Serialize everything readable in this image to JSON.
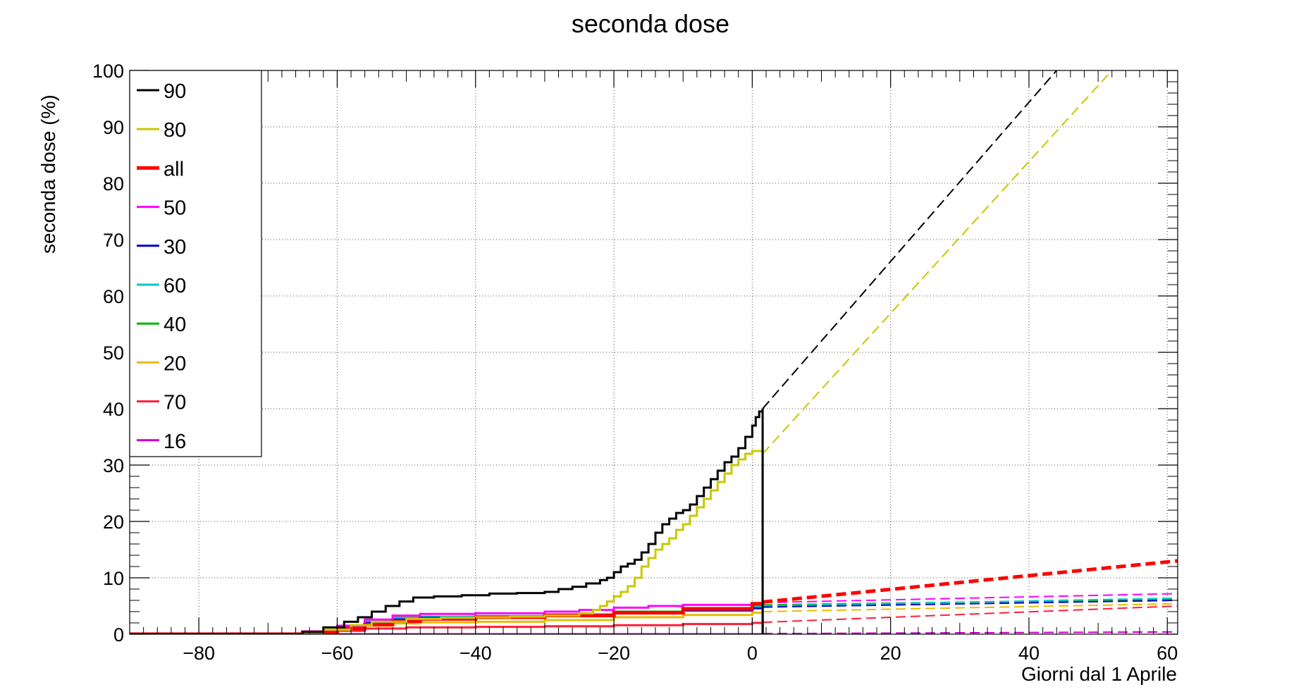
{
  "chart_data": {
    "type": "line",
    "title": "seconda dose",
    "xlabel": "Giorni dal 1 Aprile",
    "ylabel": "seconda dose (%)",
    "xlim": [
      -90,
      61.5
    ],
    "ylim": [
      0,
      100
    ],
    "x_ticks": [
      -80,
      -60,
      -40,
      -20,
      0,
      20,
      40,
      60
    ],
    "y_ticks": [
      0,
      10,
      20,
      30,
      40,
      50,
      60,
      70,
      80,
      90,
      100
    ],
    "grid": true,
    "legend_position": "top-left",
    "series": [
      {
        "name": "90",
        "color": "#000000",
        "width": 3,
        "data": [
          [
            -90,
            0
          ],
          [
            -69,
            0
          ],
          [
            -65,
            0.4
          ],
          [
            -62,
            1.2
          ],
          [
            -59,
            2.2
          ],
          [
            -57,
            3
          ],
          [
            -55,
            4
          ],
          [
            -53,
            5
          ],
          [
            -51,
            5.8
          ],
          [
            -49,
            6.5
          ],
          [
            -46,
            6.7
          ],
          [
            -42,
            6.9
          ],
          [
            -38,
            7.2
          ],
          [
            -34,
            7.3
          ],
          [
            -30,
            7.5
          ],
          [
            -28,
            8
          ],
          [
            -26,
            8.4
          ],
          [
            -24,
            9
          ],
          [
            -22,
            9.6
          ],
          [
            -21,
            10
          ],
          [
            -20,
            11
          ],
          [
            -19,
            12
          ],
          [
            -18,
            12.5
          ],
          [
            -17,
            13.2
          ],
          [
            -16,
            14.5
          ],
          [
            -15,
            16
          ],
          [
            -14,
            18
          ],
          [
            -13,
            19.5
          ],
          [
            -12,
            20.5
          ],
          [
            -11,
            21.5
          ],
          [
            -10,
            22
          ],
          [
            -9,
            23
          ],
          [
            -8,
            24.5
          ],
          [
            -7,
            26
          ],
          [
            -6,
            27.5
          ],
          [
            -5,
            29
          ],
          [
            -4,
            30.5
          ],
          [
            -3,
            31.5
          ],
          [
            -2,
            33
          ],
          [
            -1,
            35
          ],
          [
            0,
            37
          ],
          [
            0.5,
            38.5
          ],
          [
            1,
            39.5
          ],
          [
            1.5,
            40
          ],
          [
            1.5,
            0
          ]
        ],
        "projection": {
          "x": [
            1.5,
            44
          ],
          "y": [
            40,
            100
          ]
        }
      },
      {
        "name": "80",
        "color": "#c8c800",
        "width": 3,
        "data": [
          [
            -90,
            0
          ],
          [
            -69,
            0
          ],
          [
            -65,
            0.3
          ],
          [
            -62,
            0.8
          ],
          [
            -58,
            1.6
          ],
          [
            -55,
            2.2
          ],
          [
            -50,
            2.7
          ],
          [
            -45,
            2.9
          ],
          [
            -40,
            3
          ],
          [
            -35,
            3.1
          ],
          [
            -30,
            3.3
          ],
          [
            -25,
            3.7
          ],
          [
            -23,
            4.3
          ],
          [
            -22,
            5
          ],
          [
            -21,
            5.8
          ],
          [
            -20,
            6.7
          ],
          [
            -19,
            7.5
          ],
          [
            -18,
            8.5
          ],
          [
            -17,
            10
          ],
          [
            -16,
            12
          ],
          [
            -15,
            13.5
          ],
          [
            -14,
            15
          ],
          [
            -13,
            16
          ],
          [
            -12,
            17
          ],
          [
            -11,
            18.5
          ],
          [
            -10,
            19.5
          ],
          [
            -9,
            21
          ],
          [
            -8,
            22.5
          ],
          [
            -7,
            24
          ],
          [
            -6,
            25.5
          ],
          [
            -5,
            27
          ],
          [
            -4,
            28.5
          ],
          [
            -3,
            30
          ],
          [
            -2,
            31
          ],
          [
            -1,
            32
          ],
          [
            0,
            32.5
          ],
          [
            1.5,
            32.5
          ],
          [
            1.5,
            0
          ]
        ],
        "projection": {
          "x": [
            1.5,
            52
          ],
          "y": [
            32,
            100
          ]
        }
      },
      {
        "name": "all",
        "color": "#ff0000",
        "width": 5,
        "data": [
          [
            -90,
            0
          ],
          [
            -70,
            0
          ],
          [
            -65,
            0.3
          ],
          [
            -60,
            1
          ],
          [
            -56,
            1.7
          ],
          [
            -52,
            2.3
          ],
          [
            -48,
            2.7
          ],
          [
            -40,
            3
          ],
          [
            -30,
            3.3
          ],
          [
            -20,
            3.8
          ],
          [
            -10,
            4.5
          ],
          [
            0,
            5.4
          ],
          [
            1.5,
            5.7
          ]
        ],
        "projection": {
          "x": [
            1.5,
            61.5
          ],
          "y": [
            5.7,
            13
          ]
        }
      },
      {
        "name": "50",
        "color": "#ff00ff",
        "width": 3,
        "data": [
          [
            -90,
            0
          ],
          [
            -70,
            0
          ],
          [
            -65,
            0.5
          ],
          [
            -60,
            1.5
          ],
          [
            -56,
            2.6
          ],
          [
            -52,
            3.3
          ],
          [
            -48,
            3.6
          ],
          [
            -40,
            3.7
          ],
          [
            -30,
            4
          ],
          [
            -25,
            4.3
          ],
          [
            -20,
            4.7
          ],
          [
            -15,
            5
          ],
          [
            -10,
            5.2
          ],
          [
            0,
            5.5
          ],
          [
            1.5,
            5.6
          ],
          [
            1.5,
            0
          ]
        ],
        "projection": {
          "x": [
            1.5,
            61.5
          ],
          "y": [
            5.6,
            7.2
          ]
        }
      },
      {
        "name": "30",
        "color": "#0000cc",
        "width": 3,
        "data": [
          [
            -90,
            0
          ],
          [
            -70,
            0
          ],
          [
            -65,
            0.4
          ],
          [
            -60,
            1.2
          ],
          [
            -56,
            2
          ],
          [
            -52,
            2.6
          ],
          [
            -48,
            2.9
          ],
          [
            -40,
            3
          ],
          [
            -30,
            3.2
          ],
          [
            -20,
            3.7
          ],
          [
            -10,
            4.2
          ],
          [
            0,
            4.6
          ],
          [
            1.5,
            4.8
          ],
          [
            1.5,
            0
          ]
        ],
        "projection": {
          "x": [
            1.5,
            61.5
          ],
          "y": [
            4.8,
            6
          ]
        }
      },
      {
        "name": "60",
        "color": "#00c8c8",
        "width": 3,
        "data": [
          [
            -90,
            0
          ],
          [
            -70,
            0
          ],
          [
            -65,
            0.5
          ],
          [
            -60,
            1.4
          ],
          [
            -56,
            2.3
          ],
          [
            -52,
            2.8
          ],
          [
            -48,
            3.1
          ],
          [
            -40,
            3.2
          ],
          [
            -30,
            3.4
          ],
          [
            -20,
            3.9
          ],
          [
            -10,
            4.4
          ],
          [
            0,
            4.8
          ],
          [
            1.5,
            5
          ],
          [
            1.5,
            0
          ]
        ],
        "projection": {
          "x": [
            1.5,
            61.5
          ],
          "y": [
            5,
            6.4
          ]
        }
      },
      {
        "name": "40",
        "color": "#00b400",
        "width": 3,
        "data": [
          [
            -90,
            0
          ],
          [
            -70,
            0
          ],
          [
            -65,
            0.5
          ],
          [
            -60,
            1.5
          ],
          [
            -56,
            2.4
          ],
          [
            -52,
            2.9
          ],
          [
            -48,
            3.1
          ],
          [
            -40,
            3.2
          ],
          [
            -30,
            3.5
          ],
          [
            -20,
            4
          ],
          [
            -10,
            4.5
          ],
          [
            0,
            5
          ],
          [
            1.5,
            5.2
          ],
          [
            1.5,
            0
          ]
        ],
        "projection": {
          "x": [
            1.5,
            61.5
          ],
          "y": [
            5.2,
            6.2
          ]
        }
      },
      {
        "name": "20",
        "color": "#e6be00",
        "width": 3,
        "data": [
          [
            -90,
            0
          ],
          [
            -70,
            0
          ],
          [
            -65,
            0.3
          ],
          [
            -60,
            0.9
          ],
          [
            -56,
            1.5
          ],
          [
            -52,
            1.9
          ],
          [
            -48,
            2.1
          ],
          [
            -40,
            2.2
          ],
          [
            -30,
            2.5
          ],
          [
            -20,
            3
          ],
          [
            -10,
            3.4
          ],
          [
            0,
            3.8
          ],
          [
            1.5,
            4
          ],
          [
            1.5,
            0
          ]
        ],
        "projection": {
          "x": [
            1.5,
            61.5
          ],
          "y": [
            4,
            5.4
          ]
        }
      },
      {
        "name": "70",
        "color": "#ff1e3c",
        "width": 3,
        "data": [
          [
            -90,
            0
          ],
          [
            -70,
            0
          ],
          [
            -65,
            0.2
          ],
          [
            -60,
            0.6
          ],
          [
            -56,
            1
          ],
          [
            -50,
            1.2
          ],
          [
            -40,
            1.3
          ],
          [
            -30,
            1.4
          ],
          [
            -20,
            1.6
          ],
          [
            -10,
            1.8
          ],
          [
            0,
            2
          ],
          [
            1.5,
            2.1
          ],
          [
            1.5,
            0
          ]
        ],
        "projection": {
          "x": [
            1.5,
            61.5
          ],
          "y": [
            2.1,
            5
          ]
        }
      },
      {
        "name": "16",
        "color": "#c800c8",
        "width": 3,
        "data": [
          [
            -90,
            0
          ],
          [
            1.5,
            0
          ]
        ],
        "projection": {
          "x": [
            1.5,
            61.5
          ],
          "y": [
            0.1,
            0.4
          ]
        }
      }
    ]
  }
}
